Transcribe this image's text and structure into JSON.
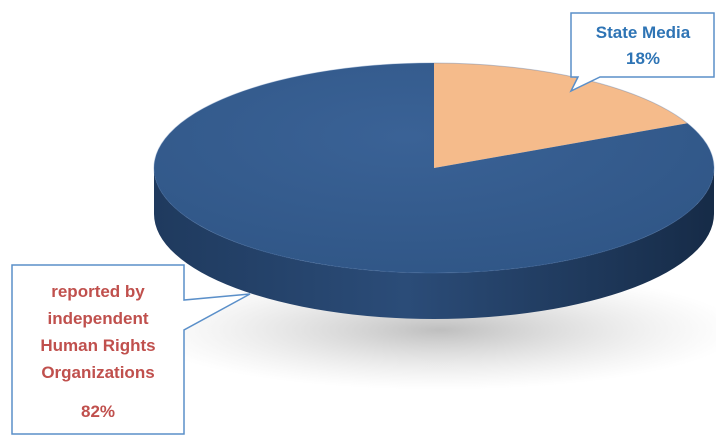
{
  "chart_data": {
    "type": "pie",
    "title": "",
    "slices": [
      {
        "label": "State Media",
        "value": 18,
        "value_label": "18%",
        "color": "#F5BB8B"
      },
      {
        "label_lines": [
          "reported by",
          "independent",
          "Human Rights",
          "Organizations"
        ],
        "value": 82,
        "value_label": "82%",
        "color": "#335A8C"
      }
    ],
    "style": "3d-exploded-tilted",
    "legend": "none",
    "label_colors": {
      "state_media": "#2E74B5",
      "human_rights": "#C0504D"
    }
  }
}
